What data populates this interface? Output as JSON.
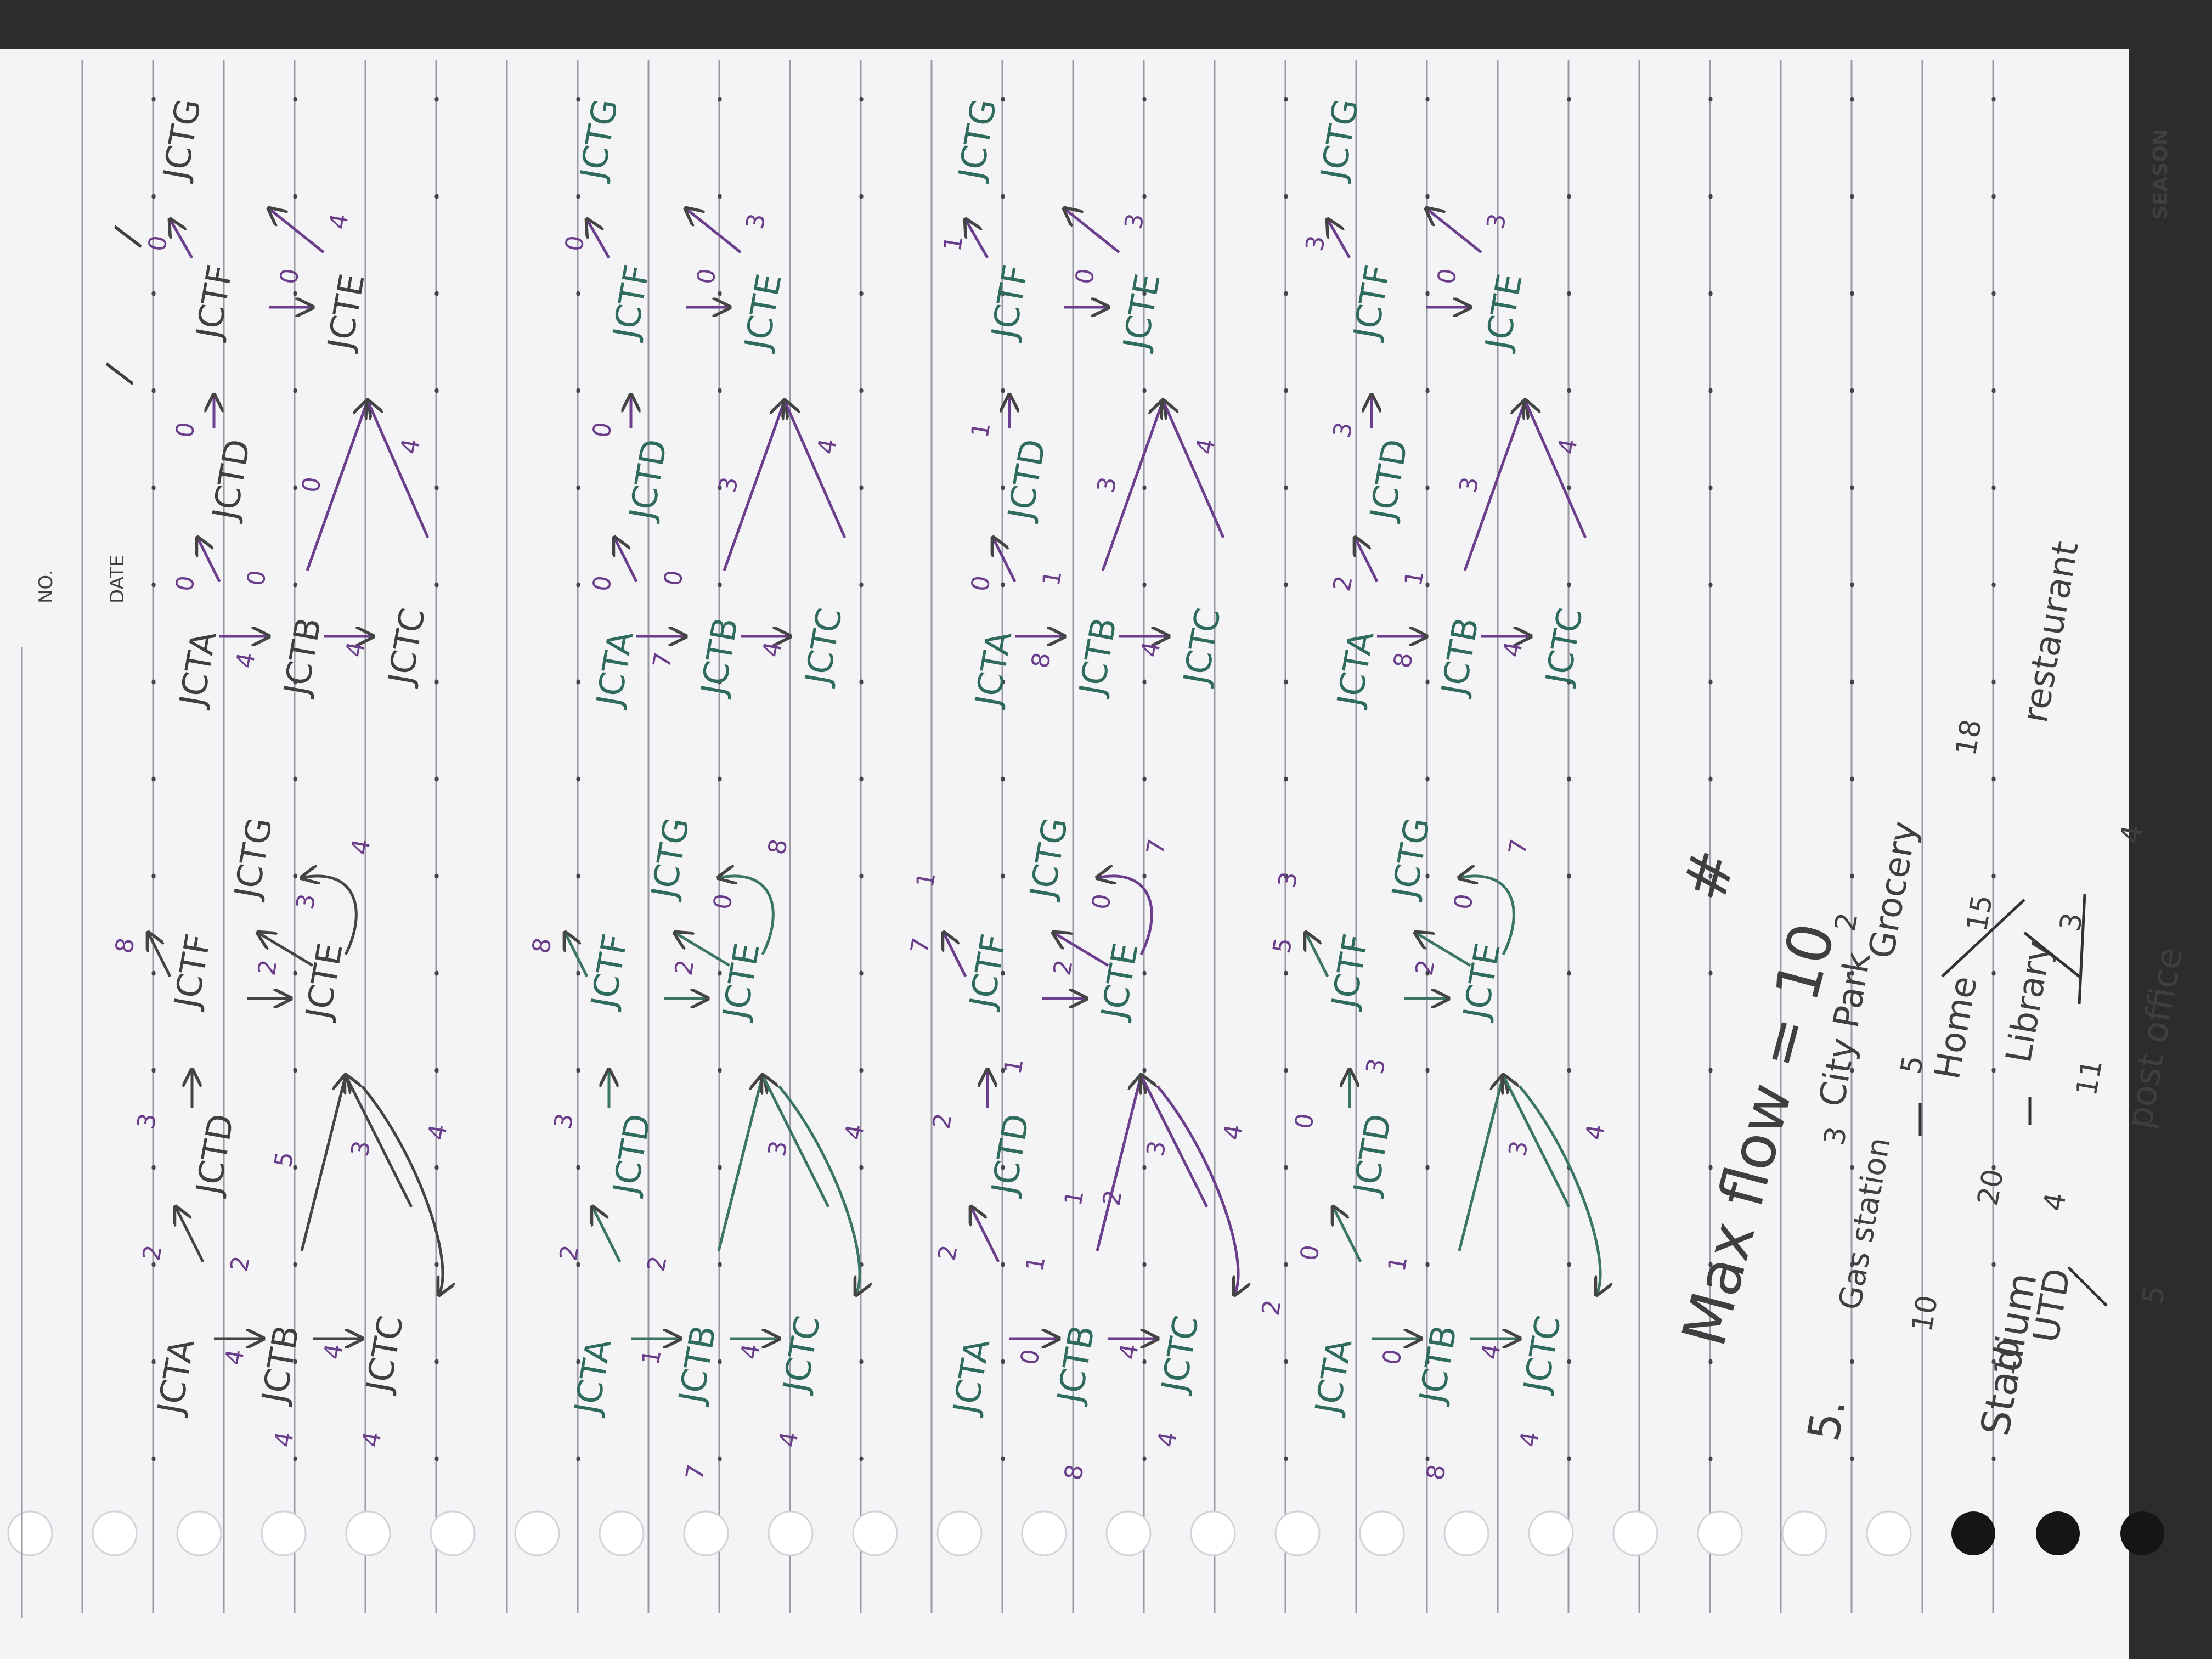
{
  "header": {
    "no_label": "NO.",
    "date_label": "DATE",
    "date_slash_1": "/",
    "date_slash_2": "/"
  },
  "brand": "SEASON",
  "graph_nodes": [
    "JCTA",
    "JCTB",
    "JCTC",
    "JCTD",
    "JCTE",
    "JCTF",
    "JCTG"
  ],
  "flow_rows": [
    {
      "residual": {
        "a": "JCTA",
        "b": "JCTB",
        "c": "JCTC",
        "d": "JCTD",
        "e": "JCTE",
        "f": "JCTF",
        "g": "JCTG",
        "w_ab": "4",
        "w_bc": "4",
        "w_ad": "2",
        "w_df": "3",
        "w_fg": "8",
        "w_fe": "2",
        "w_eg": "3",
        "w_be": "5",
        "w_ce": "3",
        "w_bd": "2",
        "w_ge": "4",
        "w_ca": "4",
        "w_cb": "4",
        "w_ec": "4"
      },
      "flow": {
        "a": "JCTA",
        "b": "JCTB",
        "c": "JCTC",
        "d": "JCTD",
        "e": "JCTE",
        "f": "JCTF",
        "g": "JCTG",
        "w_ab": "4",
        "w_bc": "4",
        "w_ad": "0",
        "w_df": "0",
        "w_fg": "0",
        "w_fe": "0",
        "w_eg": "4",
        "w_be": "0",
        "w_ce": "4",
        "w_bd": "0"
      }
    },
    {
      "residual": {
        "a": "JCTA",
        "b": "JCTB",
        "c": "JCTC",
        "d": "JCTD",
        "f": "JCTF",
        "g": "JCTG",
        "e": "JCTE",
        "w_ab": "1",
        "w_bc": "4",
        "w_ad": "2",
        "w_df": "3",
        "w_fg": "8",
        "w_fe": "2",
        "w_eg": "0",
        "w_bd": "2",
        "w_ce": "3",
        "w_ec": "4",
        "w_ge": "8",
        "w_ca": "4",
        "w_ba": "7"
      },
      "flow": {
        "a": "JCTA",
        "b": "JCTB",
        "c": "JCTC",
        "d": "JCTD",
        "e": "JCTE",
        "f": "JCTF",
        "g": "JCTG",
        "w_ab": "7",
        "w_bc": "4",
        "w_ad": "0",
        "w_df": "0",
        "w_fg": "0",
        "w_fe": "0",
        "w_eg": "3",
        "w_be": "3",
        "w_ce": "4",
        "w_bd": "0"
      }
    },
    {
      "residual": {
        "a": "JCTA",
        "b": "JCTB",
        "c": "JCTC",
        "d": "JCTD",
        "e": "JCTE",
        "f": "JCTF",
        "g": "JCTG",
        "w_ab": "0",
        "w_bc": "4",
        "w_ad": "2",
        "w_df": "2",
        "w_fg": "7",
        "w_fe": "2",
        "w_eg": "0",
        "w_bd": "1",
        "w_ce": "3",
        "w_ec": "4",
        "w_ge": "7",
        "w_ca": "4",
        "w_ba": "8",
        "w_fd": "1",
        "w_db": "1",
        "w_eb": "2",
        "w_gf": "1"
      },
      "flow": {
        "a": "JCTA",
        "b": "JCTB",
        "c": "JCTC",
        "d": "JCTD",
        "e": "JCTE",
        "f": "JCTF",
        "g": "JCTG",
        "w_ab": "8",
        "w_bc": "4",
        "w_ad": "0",
        "w_df": "1",
        "w_fg": "1",
        "w_fe": "0",
        "w_eg": "3",
        "w_be": "3",
        "w_ce": "4",
        "w_bd": "1"
      }
    },
    {
      "residual": {
        "a": "JCTA",
        "b": "JCTB",
        "c": "JCTC",
        "d": "JCTD",
        "e": "JCTE",
        "f": "JCTF",
        "g": "JCTG",
        "w_ab": "0",
        "w_bc": "4",
        "w_ad": "0",
        "w_df": "0",
        "w_fg": "5",
        "w_fe": "2",
        "w_eg": "0",
        "w_bd": "1",
        "w_ce": "3",
        "w_ec": "4",
        "w_ge": "7",
        "w_ca": "4",
        "w_ba": "8",
        "w_fd": "3",
        "w_da": "2",
        "w_gf": "3"
      },
      "flow": {
        "a": "JCTA",
        "b": "JCTB",
        "c": "JCTC",
        "d": "JCTD",
        "e": "JCTE",
        "f": "JCTF",
        "g": "JCTG",
        "w_ab": "8",
        "w_bc": "4",
        "w_ad": "2",
        "w_df": "3",
        "w_fg": "3",
        "w_fe": "0",
        "w_eg": "3",
        "w_be": "3",
        "w_ce": "4",
        "w_bd": "1"
      }
    }
  ],
  "result": {
    "max_flow": "Max flow = 10",
    "hash": "#"
  },
  "problem5": {
    "number": "5.",
    "places": [
      "Stadium",
      "Gas station",
      "City Park",
      "Grocery",
      "Home",
      "Library",
      "UTD",
      "restaurant",
      "post office"
    ],
    "weights": [
      "10",
      "3",
      "2",
      "5",
      "10",
      "20",
      "4",
      "11",
      "15",
      "3",
      "18",
      "4",
      "5"
    ]
  }
}
